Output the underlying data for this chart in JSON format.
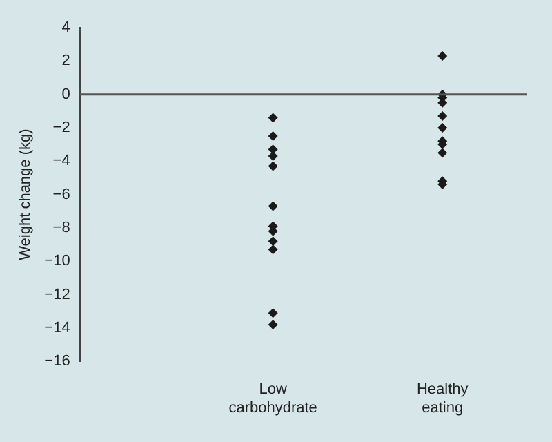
{
  "chart_data": {
    "type": "scatter",
    "ylabel": "Weight change (kg)",
    "categories": [
      "Low carbohydrate",
      "Healthy eating"
    ],
    "series": [
      {
        "color": "#1a1a1a",
        "x": [
          "Low carbohydrate",
          "Low carbohydrate",
          "Low carbohydrate",
          "Low carbohydrate",
          "Low carbohydrate",
          "Low carbohydrate",
          "Low carbohydrate",
          "Low carbohydrate",
          "Low carbohydrate",
          "Low carbohydrate",
          "Low carbohydrate",
          "Low carbohydrate",
          "Healthy eating",
          "Healthy eating",
          "Healthy eating",
          "Healthy eating",
          "Healthy eating",
          "Healthy eating",
          "Healthy eating",
          "Healthy eating",
          "Healthy eating",
          "Healthy eating",
          "Healthy eating"
        ],
        "values": [
          -1.4,
          -2.5,
          -3.3,
          -3.7,
          -4.3,
          -6.7,
          -7.9,
          -8.2,
          -8.8,
          -9.3,
          -13.1,
          -13.8,
          2.3,
          0,
          -0.2,
          -0.5,
          -1.3,
          -2.0,
          -2.8,
          -3.0,
          -3.5,
          -5.2,
          -5.4
        ]
      }
    ],
    "ylim": [
      -16,
      4
    ],
    "yticks": [
      {
        "value": 4,
        "label": "4"
      },
      {
        "value": 2,
        "label": "2"
      },
      {
        "value": 0,
        "label": "0"
      },
      {
        "value": -2,
        "label": "−2"
      },
      {
        "value": -4,
        "label": "−4"
      },
      {
        "value": -6,
        "label": "−6"
      },
      {
        "value": -8,
        "label": "−8"
      },
      {
        "value": -10,
        "label": "−10"
      },
      {
        "value": -12,
        "label": "−12"
      },
      {
        "value": -14,
        "label": "−14"
      },
      {
        "value": -16,
        "label": "−16"
      }
    ],
    "ref_lines": [
      {
        "axis": "y",
        "value": 0,
        "color": "#555555"
      }
    ],
    "grid": false,
    "legend": false,
    "marker": "diamond"
  }
}
